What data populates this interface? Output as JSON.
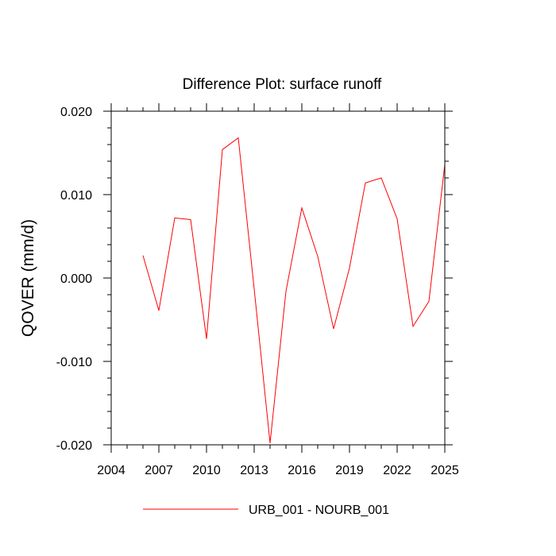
{
  "chart_data": {
    "type": "line",
    "title": "Difference Plot: surface runoff",
    "xlabel": "",
    "ylabel": "QOVER  (mm/d)",
    "xlim": [
      2004,
      2025
    ],
    "ylim": [
      -0.02,
      0.02
    ],
    "x_major_ticks": [
      2004,
      2007,
      2010,
      2013,
      2016,
      2019,
      2022,
      2025
    ],
    "y_major_ticks": [
      -0.02,
      -0.01,
      0.0,
      0.01,
      0.02
    ],
    "x_tick_labels": [
      "2004",
      "2007",
      "2010",
      "2013",
      "2016",
      "2019",
      "2022",
      "2025"
    ],
    "y_tick_labels": [
      "-0.020",
      "-0.010",
      "0.000",
      "0.010",
      "0.020"
    ],
    "grid": false,
    "legend_position": "bottom-center",
    "series": [
      {
        "name": "URB_001 - NOURB_001",
        "color": "#ff0000",
        "x": [
          2006,
          2007,
          2008,
          2009,
          2010,
          2011,
          2012,
          2013,
          2014,
          2015,
          2016,
          2017,
          2018,
          2019,
          2020,
          2021,
          2022,
          2023,
          2024,
          2025
        ],
        "y": [
          0.0027,
          -0.0039,
          0.0072,
          0.007,
          -0.0073,
          0.0154,
          0.0168,
          -0.0013,
          -0.0198,
          -0.0016,
          0.0084,
          0.0026,
          -0.0061,
          0.0012,
          0.0114,
          0.012,
          0.0071,
          -0.0058,
          -0.0028,
          0.0136
        ]
      }
    ]
  }
}
